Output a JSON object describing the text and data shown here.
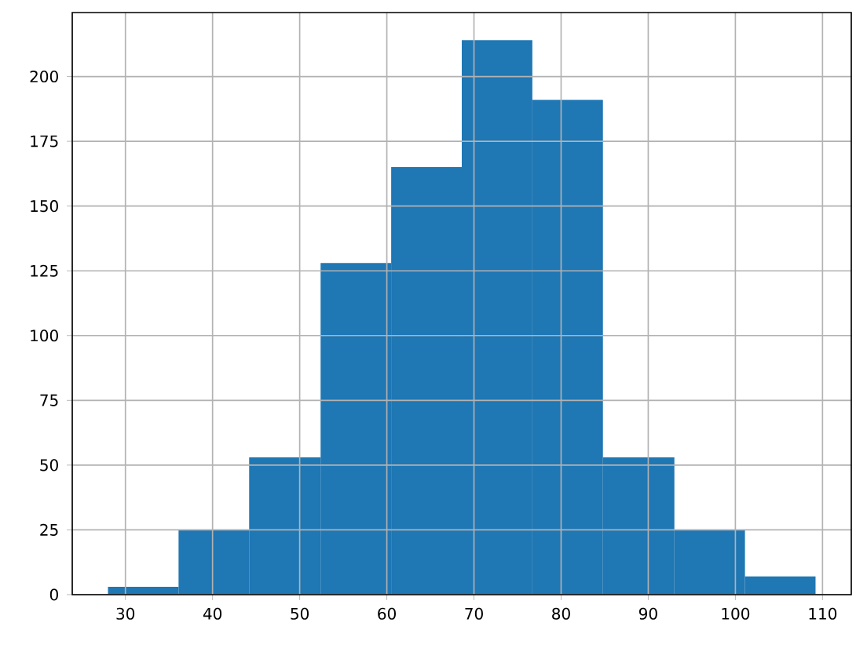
{
  "chart_data": {
    "type": "histogram",
    "bins": [
      28.0,
      36.1,
      44.2,
      52.4,
      60.5,
      68.6,
      76.7,
      84.8,
      93.0,
      101.1,
      109.2
    ],
    "values": [
      3,
      25,
      53,
      128,
      165,
      214,
      191,
      53,
      25,
      7
    ],
    "color": "#1f77b4",
    "xlim": [
      23.9,
      113.3
    ],
    "ylim": [
      0,
      224.7
    ],
    "xticks": [
      30,
      40,
      50,
      60,
      70,
      80,
      90,
      100,
      110
    ],
    "yticks": [
      0,
      25,
      50,
      75,
      100,
      125,
      150,
      175,
      200
    ],
    "grid": true
  }
}
